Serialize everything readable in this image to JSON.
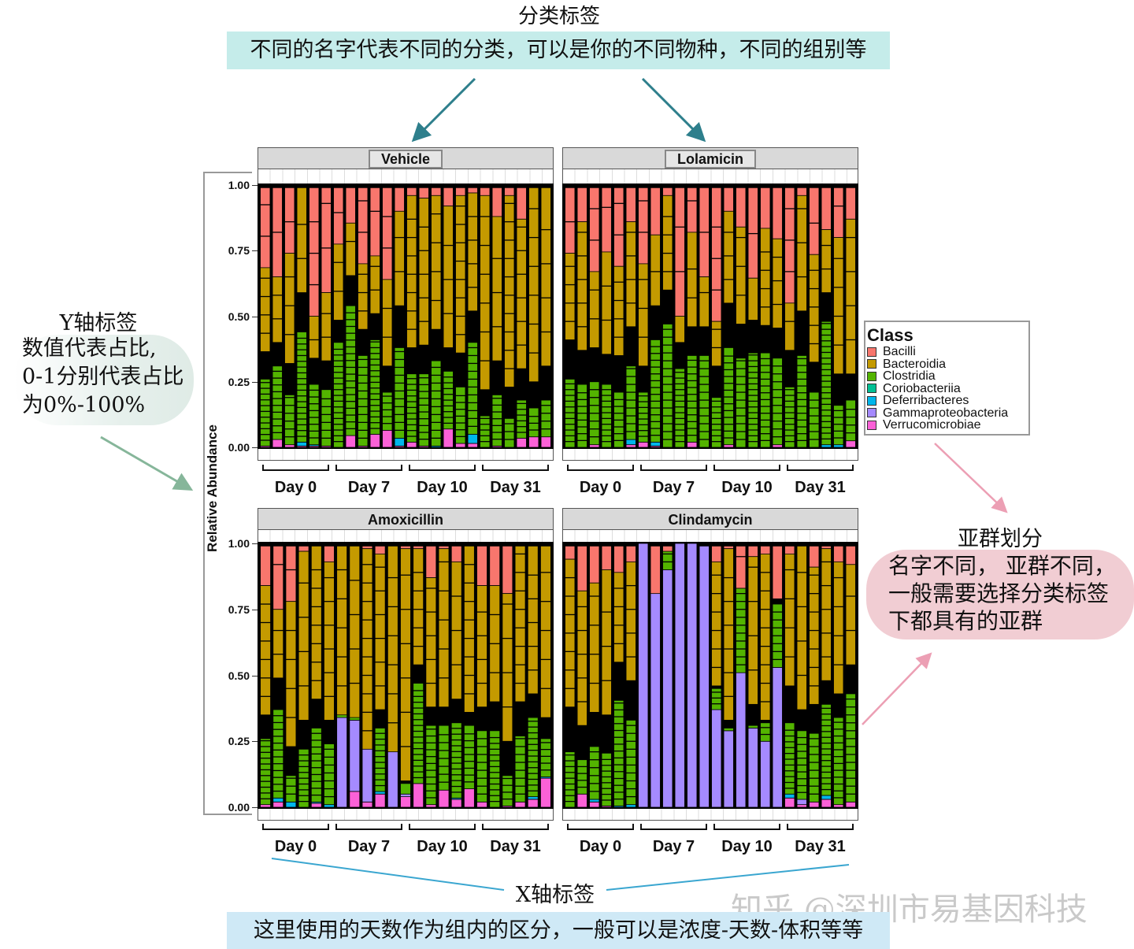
{
  "annotations": {
    "category_title": "分类标签",
    "category_desc": "不同的名字代表不同的分类，可以是你的不同物种，不同的组别等",
    "y_title": "Y轴标签",
    "y_desc_lines": [
      "数值代表占比,",
      "0-1分别代表占比",
      "为0%-100%"
    ],
    "subgroup_title": "亚群划分",
    "subgroup_desc_lines": [
      "名字不同， 亚群不同，",
      "一般需要选择分类标签",
      "下都具有的亚群"
    ],
    "x_title": "X轴标签",
    "x_desc": "这里使用的天数作为组内的区分，一般可以是浓度-天数-体积等等",
    "watermark": "知乎 @深圳市易基因科技"
  },
  "colors": {
    "teal_arrow": "#2e7f8c",
    "green_arrow": "#86b69a",
    "pink_arrow": "#ec9fb4",
    "blue_line": "#3aa6d0"
  },
  "chart_data": {
    "type": "bar",
    "stacked": true,
    "ylabel": "Relative Abundance",
    "ylim": [
      0,
      1
    ],
    "yticks": [
      "0.00",
      "0.25",
      "0.50",
      "0.75",
      "1.00"
    ],
    "groups": [
      "Day 0",
      "Day 7",
      "Day 10",
      "Day 31"
    ],
    "legend": {
      "title": "Class",
      "placement": "right",
      "classes": [
        "Bacilli",
        "Bacteroidia",
        "Clostridia",
        "Coriobacteriia",
        "Deferribacteres",
        "Gammaproteobacteria",
        "Verrucomicrobiae"
      ],
      "colors": [
        "#f8766d",
        "#c49a00",
        "#53b400",
        "#00c094",
        "#00b6eb",
        "#a58aff",
        "#fb61d7"
      ]
    },
    "value_order": "Bacilli, Bacteroidia, Clostridia, Coriobacteriia, Deferribacteres, Gammaproteobacteria, Verrucomicrobiae",
    "panels": [
      {
        "title": "Vehicle",
        "boxed": true,
        "bars": [
          [
            0.305,
            0.32,
            0.255,
            0,
            0,
            0,
            0.005
          ],
          [
            0.34,
            0.25,
            0.28,
            0,
            0,
            0,
            0.03
          ],
          [
            0.25,
            0.42,
            0.19,
            0,
            0,
            0,
            0.01
          ],
          [
            0,
            0.4,
            0.42,
            0,
            0.015,
            0,
            0.005
          ],
          [
            0.49,
            0.16,
            0.23,
            0,
            0.005,
            0,
            0.005
          ],
          [
            0.4,
            0.26,
            0.215,
            0,
            0,
            0,
            0.005
          ],
          [
            0.215,
            0.29,
            0.4,
            0,
            0,
            0,
            0
          ],
          [
            0.135,
            0.2,
            0.495,
            0,
            0,
            0,
            0.045
          ],
          [
            0.29,
            0.25,
            0.345,
            0,
            0,
            0,
            0.005
          ],
          [
            0.26,
            0.22,
            0.36,
            0,
            0,
            0,
            0.05
          ],
          [
            0.35,
            0.33,
            0.145,
            0,
            0,
            0,
            0.065
          ],
          [
            0.09,
            0.36,
            0.345,
            0,
            0.03,
            0,
            0.005
          ],
          [
            0.03,
            0.58,
            0.26,
            0,
            0,
            0,
            0.02
          ],
          [
            0.04,
            0.56,
            0.275,
            0,
            0,
            0,
            0.005
          ],
          [
            0.03,
            0.51,
            0.325,
            0,
            0.005,
            0,
            0
          ],
          [
            0.07,
            0.54,
            0.22,
            0,
            0,
            0,
            0.07
          ],
          [
            0.03,
            0.6,
            0.215,
            0,
            0,
            0,
            0.015
          ],
          [
            0.02,
            0.45,
            0.35,
            0,
            0.035,
            0,
            0.015
          ],
          [
            0.03,
            0.74,
            0.12,
            0,
            0,
            0,
            0
          ],
          [
            0.11,
            0.55,
            0.195,
            0,
            0,
            0,
            0.005
          ],
          [
            0.03,
            0.73,
            0.11,
            0,
            0,
            0,
            0
          ],
          [
            0.12,
            0.57,
            0.145,
            0,
            0,
            0,
            0.035
          ],
          [
            0,
            0.74,
            0.11,
            0,
            0,
            0,
            0.04
          ],
          [
            0,
            0.68,
            0.14,
            0,
            0,
            0,
            0.04
          ]
        ]
      },
      {
        "title": "Lolamicin",
        "boxed": true,
        "bars": [
          [
            0.25,
            0.33,
            0.26,
            0,
            0,
            0,
            0
          ],
          [
            0.13,
            0.49,
            0.24,
            0,
            0,
            0,
            0
          ],
          [
            0.32,
            0.29,
            0.24,
            0,
            0,
            0,
            0.01
          ],
          [
            0.245,
            0.39,
            0.24,
            0,
            0,
            0,
            0
          ],
          [
            0.3,
            0.34,
            0.21,
            0,
            0,
            0,
            0
          ],
          [
            0.13,
            0.4,
            0.28,
            0,
            0.02,
            0,
            0.01
          ],
          [
            0.29,
            0.39,
            0.19,
            0,
            0,
            0,
            0.02
          ],
          [
            0.18,
            0.27,
            0.39,
            0,
            0.015,
            0,
            0.005
          ],
          [
            0.03,
            0.36,
            0.47,
            0,
            0,
            0,
            0
          ],
          [
            0.49,
            0.1,
            0.3,
            0,
            0,
            0,
            0
          ],
          [
            0.17,
            0.36,
            0.33,
            0,
            0,
            0,
            0.02
          ],
          [
            0.34,
            0.19,
            0.35,
            0,
            0,
            0,
            0
          ],
          [
            0.51,
            0.17,
            0.19,
            0,
            0,
            0,
            0
          ],
          [
            0.09,
            0.35,
            0.37,
            0,
            0,
            0,
            0.01
          ],
          [
            0.15,
            0.37,
            0.34,
            0,
            0,
            0,
            0
          ],
          [
            0.345,
            0.16,
            0.36,
            0,
            0,
            0,
            0
          ],
          [
            0.155,
            0.37,
            0.36,
            0,
            0,
            0,
            0
          ],
          [
            0.195,
            0.34,
            0.33,
            0,
            0,
            0,
            0.01
          ],
          [
            0.44,
            0.18,
            0.23,
            0,
            0,
            0,
            0
          ],
          [
            0.03,
            0.44,
            0.35,
            0,
            0,
            0,
            0
          ],
          [
            0.255,
            0.41,
            0.21,
            0,
            0,
            0,
            0
          ],
          [
            0.16,
            0.24,
            0.47,
            0,
            0.01,
            0,
            0
          ],
          [
            0.19,
            0.52,
            0.15,
            0,
            0.01,
            0,
            0
          ],
          [
            0.12,
            0.59,
            0.155,
            0,
            0,
            0,
            0.025
          ]
        ]
      },
      {
        "title": "Amoxicillin",
        "boxed": false,
        "bars": [
          [
            0.15,
            0.49,
            0.25,
            0,
            0,
            0,
            0.01
          ],
          [
            0.24,
            0.26,
            0.335,
            0,
            0.015,
            0,
            0.02
          ],
          [
            0.21,
            0.55,
            0.1,
            0,
            0.02,
            0,
            0
          ],
          [
            0.02,
            0.64,
            0.22,
            0,
            0,
            0,
            0
          ],
          [
            0,
            0.58,
            0.28,
            0,
            0.005,
            0,
            0.015
          ],
          [
            0.06,
            0.6,
            0.23,
            0,
            0.01,
            0,
            0
          ],
          [
            0,
            0.64,
            0.02,
            0,
            0,
            0.34,
            0
          ],
          [
            0,
            0.65,
            0.01,
            0,
            0,
            0.27,
            0.06
          ],
          [
            0.01,
            0.76,
            0,
            0,
            0,
            0.21,
            0.02
          ],
          [
            0.03,
            0.59,
            0.24,
            0,
            0.01,
            0,
            0.05
          ],
          [
            0,
            0.78,
            0,
            0,
            0,
            0.22,
            0
          ],
          [
            0.01,
            0.88,
            0.04,
            0,
            0,
            0.01,
            0.04
          ],
          [
            0.01,
            0.44,
            0.38,
            0,
            0,
            0,
            0.09
          ],
          [
            0.12,
            0.49,
            0.3,
            0,
            0,
            0,
            0.01
          ],
          [
            0.01,
            0.6,
            0.245,
            0,
            0,
            0,
            0.065
          ],
          [
            0.06,
            0.52,
            0.285,
            0,
            0.005,
            0,
            0.03
          ],
          [
            0,
            0.63,
            0.24,
            0,
            0,
            0,
            0.07
          ],
          [
            0.15,
            0.46,
            0.27,
            0,
            0,
            0,
            0.02
          ],
          [
            0.15,
            0.44,
            0.29,
            0,
            0,
            0,
            0
          ],
          [
            0.18,
            0.56,
            0.115,
            0,
            0,
            0,
            0.005
          ],
          [
            0,
            0.59,
            0.25,
            0,
            0,
            0,
            0.02
          ],
          [
            0,
            0.56,
            0.3,
            0,
            0.01,
            0,
            0.03
          ],
          [
            0,
            0.65,
            0.145,
            0,
            0.005,
            0,
            0.11
          ]
        ]
      },
      {
        "title": "Clindamycin",
        "boxed": false,
        "bars": [
          [
            0.05,
            0.56,
            0.21,
            0,
            0,
            0,
            0
          ],
          [
            0.17,
            0.51,
            0.13,
            0,
            0,
            0,
            0.05
          ],
          [
            0.14,
            0.49,
            0.2,
            0,
            0.01,
            0,
            0.02
          ],
          [
            0.09,
            0.55,
            0.2,
            0,
            0,
            0,
            0.005
          ],
          [
            0.1,
            0.34,
            0.4,
            0,
            0.005,
            0,
            0
          ],
          [
            0.06,
            0.45,
            0.32,
            0,
            0.01,
            0,
            0
          ],
          [
            0,
            0,
            0,
            0,
            0,
            1.0,
            0
          ],
          [
            0.18,
            0,
            0,
            0,
            0,
            0.82,
            0
          ],
          [
            0.02,
            0,
            0.07,
            0,
            0,
            0.9,
            0
          ],
          [
            0,
            0,
            0,
            0,
            0,
            1.0,
            0
          ],
          [
            0,
            0,
            0,
            0,
            0,
            1.0,
            0
          ],
          [
            0,
            0,
            0,
            0,
            0,
            0.99,
            0
          ],
          [
            0.06,
            0.47,
            0.08,
            0,
            0,
            0.37,
            0
          ],
          [
            0.01,
            0.65,
            0.01,
            0,
            0,
            0.29,
            0
          ],
          [
            0.16,
            0,
            0.32,
            0,
            0,
            0.51,
            0
          ],
          [
            0.04,
            0.56,
            0.01,
            0,
            0,
            0.3,
            0
          ],
          [
            0.03,
            0.63,
            0.07,
            0,
            0,
            0.25,
            0
          ],
          [
            0.2,
            0,
            0.24,
            0,
            0,
            0.53,
            0
          ],
          [
            0.03,
            0.5,
            0.27,
            0,
            0.015,
            0,
            0.035
          ],
          [
            0,
            0.62,
            0.26,
            0,
            0,
            0.02,
            0.01
          ],
          [
            0.08,
            0.52,
            0.26,
            0,
            0,
            0,
            0.02
          ],
          [
            0.01,
            0.5,
            0.345,
            0,
            0.015,
            0,
            0.03
          ],
          [
            0.06,
            0.5,
            0.33,
            0,
            0,
            0,
            0.01
          ],
          [
            0.07,
            0.38,
            0.41,
            0,
            0,
            0,
            0.02
          ]
        ]
      }
    ]
  }
}
